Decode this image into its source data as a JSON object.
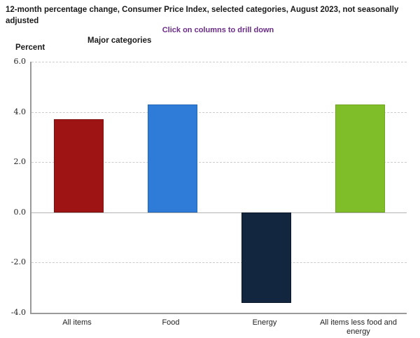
{
  "header": {
    "title": "12-month percentage change, Consumer Price Index, selected categories, August 2023, not seasonally adjusted",
    "drilldown_hint": "Click on columns to drill down",
    "section_label": "Major categories",
    "yaxis_title": "Percent"
  },
  "colors": {
    "hint_purple": "#6A2C87",
    "axis_gray": "#9A9A9A",
    "gridline_gray": "#CCCCCC",
    "zero_line_gray": "#B3B3B3",
    "text": "#1A1A1A"
  },
  "chart_data": {
    "type": "bar",
    "title": "12-month percentage change, Consumer Price Index, selected categories, August 2023, not seasonally adjusted",
    "subtitle": "Click on columns to drill down",
    "xlabel": "Major categories",
    "ylabel": "Percent",
    "categories": [
      "All items",
      "Food",
      "Energy",
      "All items less food and energy"
    ],
    "values": [
      3.7,
      4.3,
      -3.6,
      4.3
    ],
    "bar_fill_colors": [
      "#9E1414",
      "#2E7CD7",
      "#12273F",
      "#7FBE28"
    ],
    "bar_border_colors": [
      "#7E0E0E",
      "#2368B8",
      "#0A1627",
      "#6FA51F"
    ],
    "ylim": [
      -4.0,
      6.0
    ],
    "yticks": [
      6.0,
      4.0,
      2.0,
      0.0,
      -2.0,
      -4.0
    ],
    "ytick_format_decimals": 1,
    "grid": "horizontal-dashed",
    "legend": "none",
    "period": "August 2023",
    "units": "Percent (12-month percentage change)"
  }
}
